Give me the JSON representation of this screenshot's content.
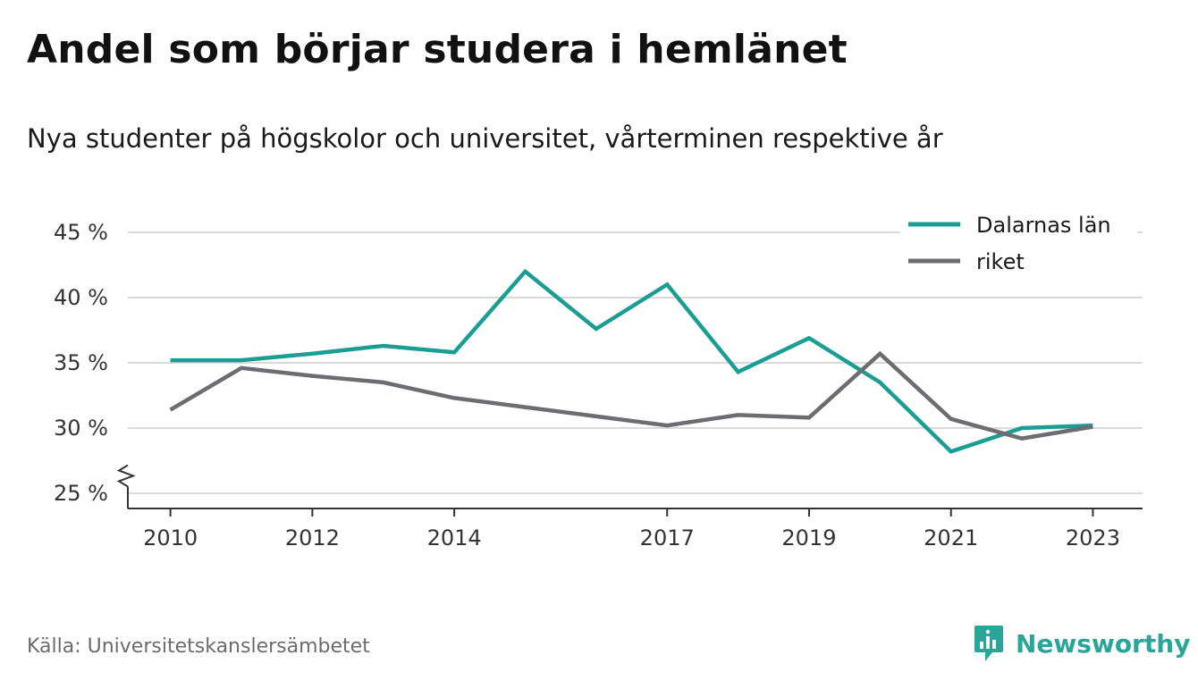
{
  "header": {
    "title": "Andel som börjar studera i hemlänet",
    "subtitle": "Nya studenter på högskolor och universitet, vårterminen respektive år"
  },
  "footer": {
    "source": "Källa: Universitetskanslersämbetet",
    "brand": "Newsworthy"
  },
  "chart_data": {
    "type": "line",
    "title": "Andel som börjar studera i hemlänet",
    "subtitle": "Nya studenter på högskolor och universitet, vårterminen respektive år",
    "x": [
      2010,
      2011,
      2012,
      2013,
      2014,
      2015,
      2016,
      2017,
      2018,
      2019,
      2020,
      2021,
      2022,
      2023
    ],
    "x_tick_values": [
      2010,
      2012,
      2014,
      2017,
      2019,
      2021,
      2023
    ],
    "x_tick_labels": [
      "2010",
      "2012",
      "2014",
      "2017",
      "2019",
      "2021",
      "2023"
    ],
    "y_tick_values": [
      25,
      30,
      35,
      40,
      45
    ],
    "y_tick_labels": [
      "25 %",
      "30 %",
      "35 %",
      "40 %",
      "45 %"
    ],
    "ylim": [
      25,
      45
    ],
    "y_axis_break": true,
    "grid": true,
    "legend_position": "top-right",
    "series": [
      {
        "name": "Dalarnas län",
        "color": "#1a9e94",
        "values": [
          35.2,
          35.2,
          35.7,
          36.3,
          35.8,
          42.0,
          37.6,
          41.0,
          34.3,
          36.9,
          33.5,
          28.2,
          30.0,
          30.2
        ]
      },
      {
        "name": "riket",
        "color": "#6d6c72",
        "values": [
          31.4,
          34.6,
          34.0,
          33.5,
          32.3,
          31.6,
          30.9,
          30.2,
          31.0,
          30.8,
          35.7,
          30.7,
          29.2,
          30.1
        ]
      }
    ]
  }
}
